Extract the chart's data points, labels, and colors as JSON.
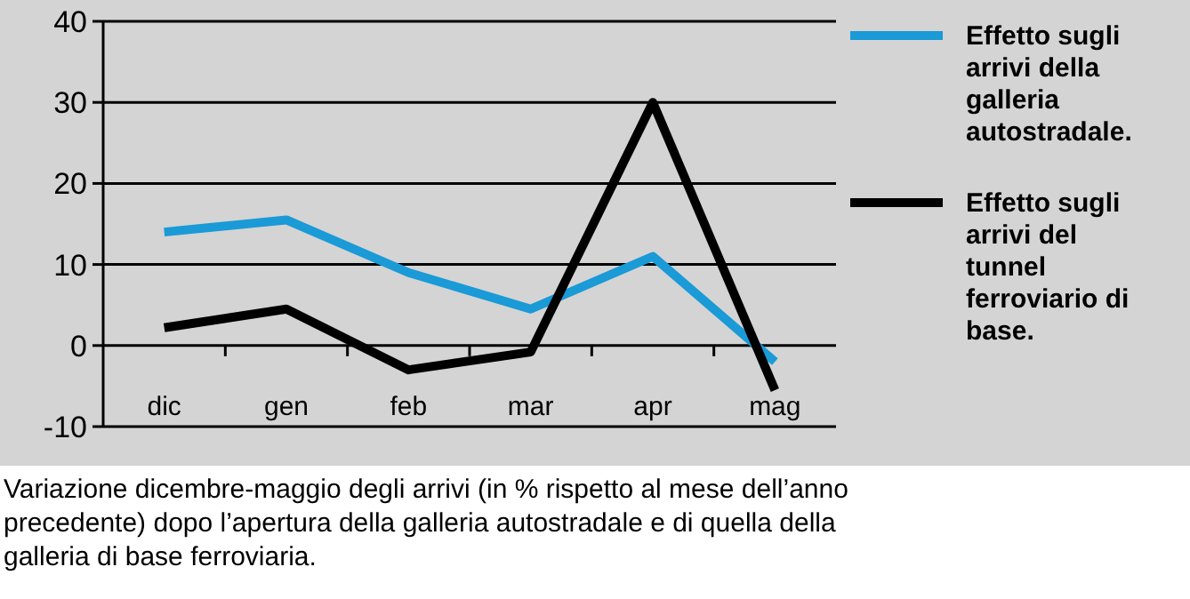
{
  "chart_data": {
    "type": "line",
    "categories": [
      "dic",
      "gen",
      "feb",
      "mar",
      "apr",
      "mag"
    ],
    "series": [
      {
        "name": "Effetto sugli arrivi della galleria autostradale.",
        "color": "#1a9ad6",
        "values": [
          14,
          15.5,
          9,
          4.5,
          11,
          -2
        ]
      },
      {
        "name": "Effetto sugli arrivi del tunnel ferroviario di base.",
        "color": "#000000",
        "values": [
          2.2,
          4.5,
          -3,
          -0.8,
          30,
          -5.5
        ]
      }
    ],
    "ylim": [
      -10,
      40
    ],
    "yticks": [
      -10,
      0,
      10,
      20,
      30,
      40
    ],
    "grid": "y",
    "legend": "right",
    "line_style": "solid",
    "annotations": [
      "Variazione dicembre-maggio degli arrivi (in % rispetto al  mese dell’anno precedente) dopo l’apertura della galleria autostradale e di quella della galleria di base ferroviaria."
    ]
  }
}
